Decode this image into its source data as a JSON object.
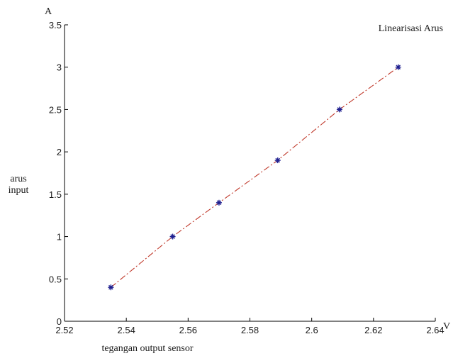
{
  "chart_data": {
    "type": "line",
    "title": "",
    "legend_label": "Linearisasi Arus",
    "legend_position": "top-right",
    "x_unit": "V",
    "y_unit": "A",
    "xlabel": "tegangan output sensor",
    "ylabel": [
      "arus",
      "input"
    ],
    "xlim": [
      2.52,
      2.64
    ],
    "ylim": [
      0,
      3.5
    ],
    "xticks": [
      2.52,
      2.54,
      2.56,
      2.58,
      2.6,
      2.62,
      2.64
    ],
    "xtick_labels": [
      "2.52",
      "2.54",
      "2.56",
      "2.58",
      "2.6",
      "2.62",
      "2.64"
    ],
    "yticks": [
      0,
      0.5,
      1,
      1.5,
      2,
      2.5,
      3,
      3.5
    ],
    "ytick_labels": [
      "0",
      "0.5",
      "1",
      "1.5",
      "2",
      "2.5",
      "3",
      "3.5"
    ],
    "grid": false,
    "series": [
      {
        "marker": "*",
        "line_style": "dash-dot",
        "line_color": "#c0392b",
        "marker_color": "#1f1f8f",
        "x": [
          2.535,
          2.555,
          2.57,
          2.589,
          2.609,
          2.628
        ],
        "y": [
          0.4,
          1.0,
          1.4,
          1.9,
          2.5,
          3.0
        ]
      }
    ]
  }
}
